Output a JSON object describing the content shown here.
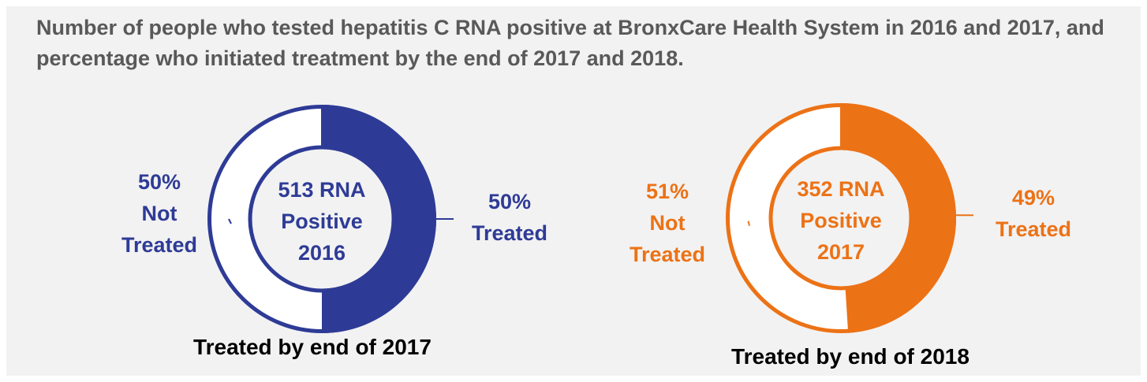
{
  "title": "Number of people who tested hepatitis C RNA positive at BronxCare Health System in 2016 and 2017, and percentage who initiated treatment by the end of 2017 and 2018.",
  "chart_data": [
    {
      "type": "pie",
      "center_lines": [
        "513 RNA",
        "Positive",
        "2016"
      ],
      "caption": "Treated by end of 2017",
      "color": "#2e3b96",
      "slices": [
        {
          "lines": [
            "50%",
            "Treated"
          ],
          "value": 50,
          "filled": true
        },
        {
          "lines": [
            "50%",
            "Not",
            "Treated"
          ],
          "value": 50,
          "filled": false
        }
      ]
    },
    {
      "type": "pie",
      "center_lines": [
        "352 RNA",
        "Positive",
        "2017"
      ],
      "caption": "Treated by end of 2018",
      "color": "#ec7216",
      "slices": [
        {
          "lines": [
            "49%",
            "Treated"
          ],
          "value": 49,
          "filled": true
        },
        {
          "lines": [
            "51%",
            "Not",
            "Treated"
          ],
          "value": 51,
          "filled": false
        }
      ]
    }
  ]
}
